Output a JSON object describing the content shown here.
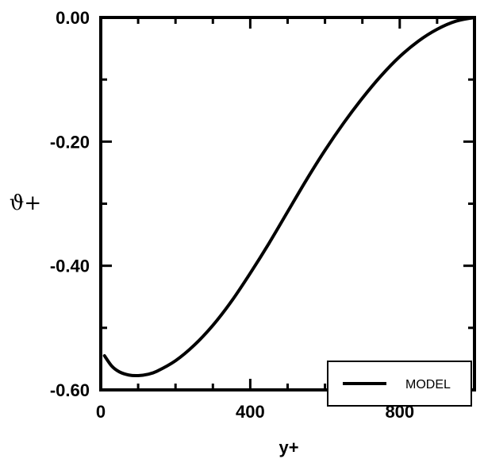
{
  "chart_data": {
    "type": "line",
    "title": "",
    "xlabel": "y+",
    "ylabel": "ϑ+",
    "xlim": [
      0,
      1000
    ],
    "ylim": [
      -0.6,
      0.0
    ],
    "x_ticks": [
      0,
      400,
      800
    ],
    "x_tick_labels": [
      "0",
      "400",
      "800"
    ],
    "y_ticks": [
      0.0,
      -0.2,
      -0.4,
      -0.6
    ],
    "y_tick_labels": [
      "0.00",
      "-0.20",
      "-0.40",
      "-0.60"
    ],
    "grid": false,
    "legend_position": "bottom-right",
    "series": [
      {
        "name": "MODEL",
        "color": "#000000",
        "x": [
          10,
          30,
          50,
          75,
          100,
          125,
          150,
          200,
          250,
          300,
          350,
          400,
          450,
          500,
          550,
          600,
          650,
          700,
          750,
          800,
          850,
          900,
          950,
          1000
        ],
        "values": [
          -0.545,
          -0.562,
          -0.571,
          -0.576,
          -0.577,
          -0.575,
          -0.57,
          -0.553,
          -0.528,
          -0.496,
          -0.457,
          -0.412,
          -0.364,
          -0.313,
          -0.262,
          -0.214,
          -0.17,
          -0.13,
          -0.094,
          -0.063,
          -0.038,
          -0.019,
          -0.006,
          0.0
        ]
      }
    ]
  }
}
